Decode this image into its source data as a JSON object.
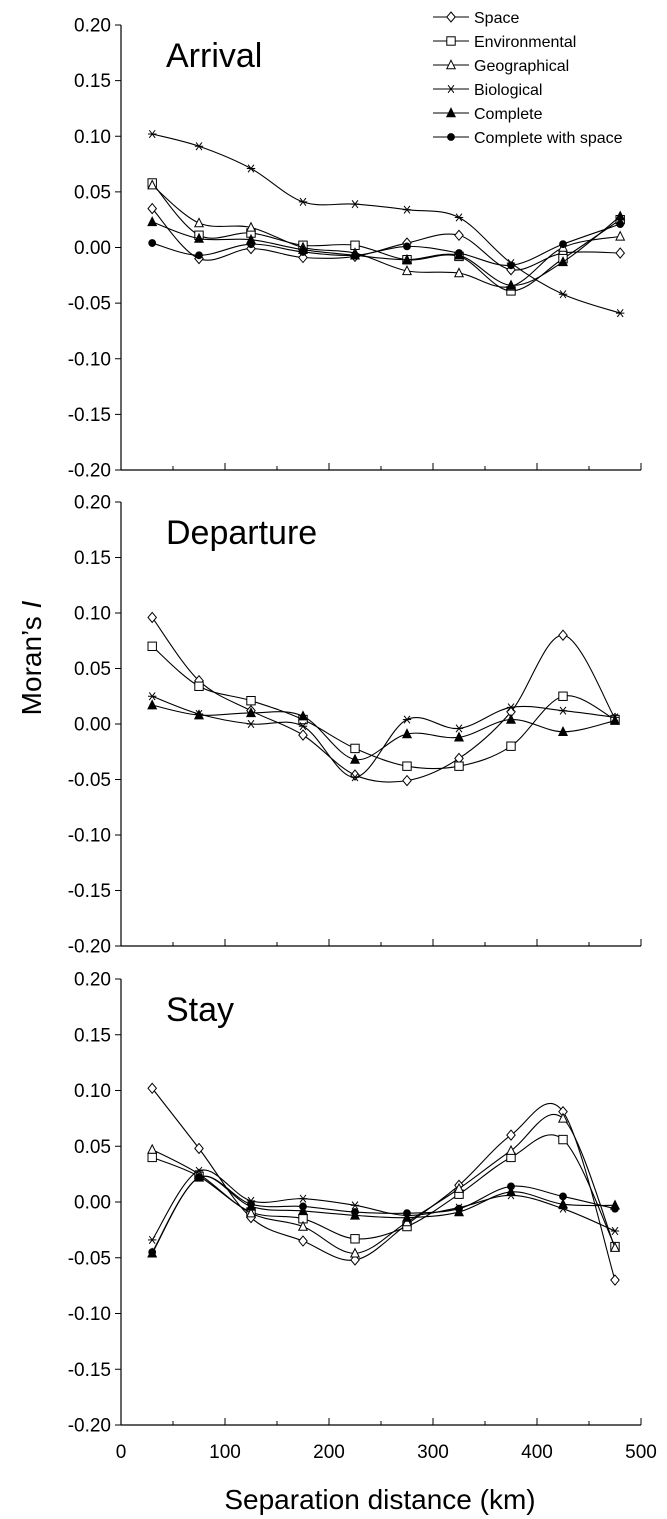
{
  "chart_data": {
    "type": "line",
    "ylabel_prefix": "Moran’s ",
    "ylabel_italic": "I",
    "xlabel": "Separation distance (km)",
    "xlim": [
      0,
      500
    ],
    "ylim": [
      -0.2,
      0.2
    ],
    "x_tick_labels": [
      "0",
      "100",
      "200",
      "300",
      "400",
      "500"
    ],
    "y_tick_labels": [
      "0.20",
      "0.15",
      "0.10",
      "0.05",
      "0.00",
      "-0.05",
      "-0.10",
      "-0.15",
      "-0.20"
    ],
    "legend": [
      {
        "name": "Space",
        "marker": "diamond-open"
      },
      {
        "name": "Environmental",
        "marker": "square-open"
      },
      {
        "name": "Geographical",
        "marker": "triangle-open"
      },
      {
        "name": "Biological",
        "marker": "asterisk"
      },
      {
        "name": "Complete",
        "marker": "triangle-filled"
      },
      {
        "name": "Complete with space",
        "marker": "circle-filled"
      }
    ],
    "panels": [
      {
        "title": "Arrival",
        "series": [
          {
            "name": "Space",
            "x": [
              30,
              75,
              125,
              175,
              225,
              275,
              325,
              375,
              425,
              480
            ],
            "y": [
              0.035,
              -0.01,
              -0.001,
              -0.009,
              -0.008,
              0.004,
              0.011,
              -0.02,
              -0.005,
              -0.005
            ]
          },
          {
            "name": "Environmental",
            "x": [
              30,
              75,
              125,
              175,
              225,
              275,
              325,
              375,
              425,
              480
            ],
            "y": [
              0.058,
              0.011,
              0.013,
              0.002,
              0.002,
              -0.011,
              -0.008,
              -0.039,
              -0.01,
              0.025
            ]
          },
          {
            "name": "Geographical",
            "x": [
              30,
              75,
              125,
              175,
              225,
              275,
              325,
              375,
              425,
              480
            ],
            "y": [
              0.056,
              0.022,
              0.018,
              0.0,
              -0.005,
              -0.021,
              -0.023,
              -0.035,
              0.0,
              0.01
            ]
          },
          {
            "name": "Biological",
            "x": [
              30,
              75,
              125,
              175,
              225,
              275,
              325,
              375,
              425,
              480
            ],
            "y": [
              0.102,
              0.091,
              0.071,
              0.041,
              0.039,
              0.034,
              0.027,
              -0.014,
              -0.042,
              -0.059
            ]
          },
          {
            "name": "Complete",
            "x": [
              30,
              75,
              125,
              175,
              225,
              275,
              325,
              375,
              425,
              480
            ],
            "y": [
              0.023,
              0.008,
              0.007,
              -0.002,
              -0.007,
              -0.011,
              -0.007,
              -0.034,
              -0.013,
              0.028
            ]
          },
          {
            "name": "Complete with space",
            "x": [
              30,
              75,
              125,
              175,
              225,
              275,
              325,
              375,
              425,
              480
            ],
            "y": [
              0.004,
              -0.007,
              0.003,
              -0.004,
              -0.007,
              0.001,
              -0.005,
              -0.016,
              0.003,
              0.021
            ]
          }
        ]
      },
      {
        "title": "Departure",
        "series": [
          {
            "name": "Space",
            "x": [
              30,
              75,
              125,
              175,
              225,
              275,
              325,
              375,
              425,
              475
            ],
            "y": [
              0.096,
              0.039,
              0.012,
              -0.01,
              -0.046,
              -0.051,
              -0.031,
              0.011,
              0.08,
              0.005
            ]
          },
          {
            "name": "Environmental",
            "x": [
              30,
              75,
              125,
              175,
              225,
              275,
              325,
              375,
              425,
              475
            ],
            "y": [
              0.07,
              0.034,
              0.021,
              0.004,
              -0.022,
              -0.038,
              -0.038,
              -0.02,
              0.025,
              0.004
            ]
          },
          {
            "name": "Biological",
            "x": [
              30,
              75,
              125,
              175,
              225,
              275,
              325,
              375,
              425,
              475
            ],
            "y": [
              0.025,
              0.009,
              0.0,
              -0.002,
              -0.048,
              0.004,
              -0.004,
              0.015,
              0.012,
              0.006
            ]
          },
          {
            "name": "Complete",
            "x": [
              30,
              75,
              125,
              175,
              225,
              275,
              325,
              375,
              425,
              475
            ],
            "y": [
              0.017,
              0.008,
              0.01,
              0.007,
              -0.032,
              -0.009,
              -0.012,
              0.004,
              -0.007,
              0.003
            ]
          }
        ]
      },
      {
        "title": "Stay",
        "series": [
          {
            "name": "Space",
            "x": [
              30,
              75,
              125,
              175,
              225,
              275,
              325,
              375,
              425,
              475
            ],
            "y": [
              0.102,
              0.048,
              -0.014,
              -0.035,
              -0.052,
              -0.02,
              0.015,
              0.06,
              0.081,
              -0.07
            ]
          },
          {
            "name": "Environmental",
            "x": [
              30,
              75,
              125,
              175,
              225,
              275,
              325,
              375,
              425,
              475
            ],
            "y": [
              0.04,
              0.023,
              -0.009,
              -0.015,
              -0.033,
              -0.022,
              0.007,
              0.04,
              0.056,
              -0.04
            ]
          },
          {
            "name": "Geographical",
            "x": [
              30,
              75,
              125,
              175,
              225,
              275,
              325,
              375,
              425,
              475
            ],
            "y": [
              0.047,
              0.025,
              -0.01,
              -0.022,
              -0.046,
              -0.018,
              0.012,
              0.046,
              0.075,
              -0.041
            ]
          },
          {
            "name": "Biological",
            "x": [
              30,
              75,
              125,
              175,
              225,
              275,
              325,
              375,
              425,
              475
            ],
            "y": [
              -0.034,
              0.028,
              0.001,
              0.003,
              -0.003,
              -0.012,
              -0.005,
              0.006,
              -0.006,
              -0.026
            ]
          },
          {
            "name": "Complete",
            "x": [
              30,
              75,
              125,
              175,
              225,
              275,
              325,
              375,
              425,
              475
            ],
            "y": [
              -0.046,
              0.022,
              -0.004,
              -0.008,
              -0.012,
              -0.014,
              -0.009,
              0.009,
              -0.002,
              -0.003
            ]
          },
          {
            "name": "Complete with space",
            "x": [
              30,
              75,
              125,
              175,
              225,
              275,
              325,
              375,
              425,
              475
            ],
            "y": [
              -0.045,
              0.022,
              -0.002,
              -0.004,
              -0.009,
              -0.01,
              -0.006,
              0.014,
              0.005,
              -0.006
            ]
          }
        ]
      }
    ]
  }
}
